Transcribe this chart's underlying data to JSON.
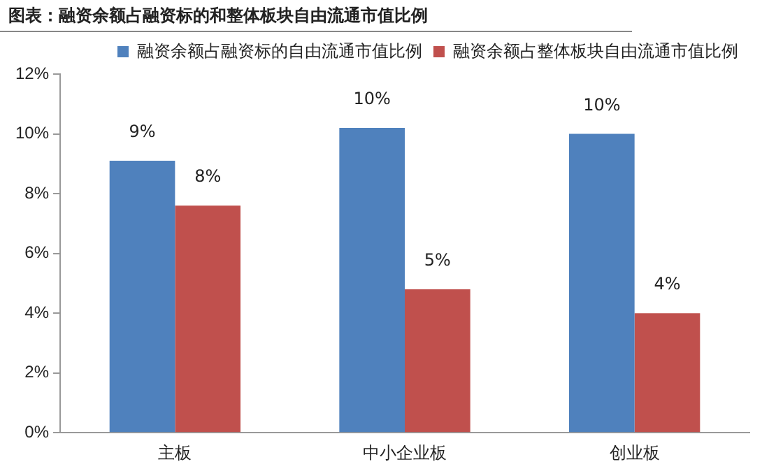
{
  "chart_data": {
    "type": "bar",
    "title": "图表：融资余额占融资标的和整体板块自由流通市值比例",
    "categories": [
      "主板",
      "中小企业板",
      "创业板"
    ],
    "series": [
      {
        "name": "融资余额占融资标的自由流通市值比例",
        "color": "#4f81bd",
        "values": [
          9.1,
          10.2,
          10.0
        ],
        "value_labels": [
          "9%",
          "10%",
          "10%"
        ]
      },
      {
        "name": "融资余额占整体板块自由流通市值比例",
        "color": "#c0504d",
        "values": [
          7.6,
          4.8,
          4.0
        ],
        "value_labels": [
          "8%",
          "5%",
          "4%"
        ]
      }
    ],
    "ylim": [
      0,
      12
    ],
    "yticks": [
      {
        "value": 0,
        "label": "0%"
      },
      {
        "value": 2,
        "label": "2%"
      },
      {
        "value": 4,
        "label": "4%"
      },
      {
        "value": 6,
        "label": "6%"
      },
      {
        "value": 8,
        "label": "8%"
      },
      {
        "value": 10,
        "label": "10%"
      },
      {
        "value": 12,
        "label": "12%"
      }
    ],
    "grid": false,
    "legend": "top right"
  }
}
